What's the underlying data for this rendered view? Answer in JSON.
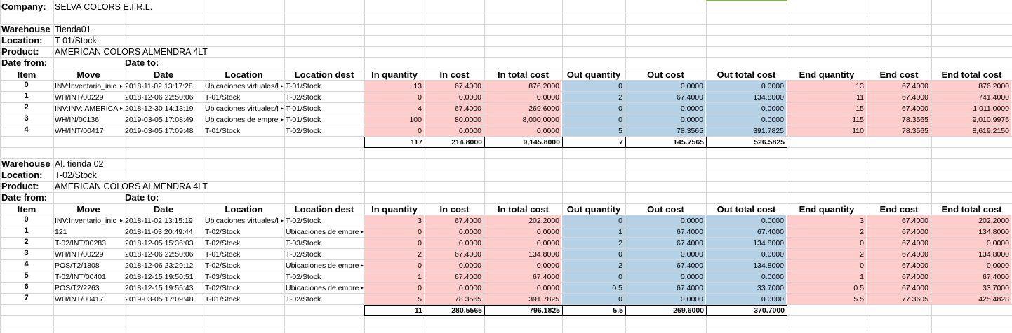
{
  "company": {
    "label": "Company:",
    "value": "SELVA COLORS E.I.R.L."
  },
  "labels": {
    "warehouse": "Warehouse",
    "location": "Location:",
    "product": "Product:",
    "date_from": "Date from:",
    "date_to": "Date to:"
  },
  "headers": [
    "Item",
    "Move",
    "Date",
    "Location",
    "Location dest",
    "In quantity",
    "In cost",
    "In total cost",
    "Out quantity",
    "Out cost",
    "Out total cost",
    "End quantity",
    "End cost",
    "End total cost"
  ],
  "sections": [
    {
      "warehouse": "Tienda01",
      "location": "T-01/Stock",
      "product": "AMERICAN COLORS ALMENDRA 4LT",
      "rows": [
        [
          "0",
          "INV:Inventario_inic",
          "2018-11-02 13:17:28",
          "Ubicaciones virtuales/I",
          "T-01/Stock",
          "13",
          "67.4000",
          "876.2000",
          "0",
          "0.0000",
          "0.0000",
          "13",
          "67.4000",
          "876.2000"
        ],
        [
          "1",
          "WH/INT/00229",
          "2018-12-06 22:50:06",
          "T-01/Stock",
          "T-02/Stock",
          "0",
          "0.0000",
          "0.0000",
          "2",
          "67.4000",
          "134.8000",
          "11",
          "67.4000",
          "741.4000"
        ],
        [
          "2",
          "INV:INV: AMERICA",
          "2018-12-30 14:13:19",
          "Ubicaciones virtuales/I",
          "T-01/Stock",
          "4",
          "67.4000",
          "269.6000",
          "0",
          "0.0000",
          "0.0000",
          "15",
          "67.4000",
          "1,011.0000"
        ],
        [
          "3",
          "WH/IN/00136",
          "2019-03-05 17:08:49",
          "Ubicaciones de empre",
          "T-01/Stock",
          "100",
          "80.0000",
          "8,000.0000",
          "0",
          "0.0000",
          "0.0000",
          "115",
          "78.3565",
          "9,010.9975"
        ],
        [
          "4",
          "WH/INT/00417",
          "2019-03-05 17:09:48",
          "T-01/Stock",
          "T-02/Stock",
          "0",
          "0.0000",
          "0.0000",
          "5",
          "78.3565",
          "391.7825",
          "110",
          "78.3565",
          "8,619.2150"
        ]
      ],
      "truncated": [
        [
          true,
          false,
          true,
          false
        ],
        [
          false,
          false,
          false,
          false
        ],
        [
          true,
          false,
          true,
          false
        ],
        [
          false,
          false,
          true,
          false
        ],
        [
          false,
          false,
          false,
          false
        ]
      ],
      "totals": [
        "117",
        "214.8000",
        "9,145.8000",
        "7",
        "145.7565",
        "526.5825"
      ]
    },
    {
      "warehouse": "Al. tienda 02",
      "location": "T-02/Stock",
      "product": "AMERICAN COLORS ALMENDRA 4LT",
      "rows": [
        [
          "0",
          "INV:Inventario_inic",
          "2018-11-02 13:15:19",
          "Ubicaciones virtuales/I",
          "T-02/Stock",
          "3",
          "67.4000",
          "202.2000",
          "0",
          "0.0000",
          "0.0000",
          "3",
          "67.4000",
          "202.2000"
        ],
        [
          "1",
          "121",
          "2018-11-03 20:49:44",
          "T-02/Stock",
          "Ubicaciones de empre",
          "0",
          "0.0000",
          "0.0000",
          "1",
          "67.4000",
          "67.4000",
          "2",
          "67.4000",
          "134.8000"
        ],
        [
          "2",
          "T-02/INT/00283",
          "2018-12-05 15:36:03",
          "T-02/Stock",
          "T-03/Stock",
          "0",
          "0.0000",
          "0.0000",
          "2",
          "67.4000",
          "134.8000",
          "0",
          "67.4000",
          "0.0000"
        ],
        [
          "3",
          "WH/INT/00229",
          "2018-12-06 22:50:06",
          "T-01/Stock",
          "T-02/Stock",
          "2",
          "67.4000",
          "134.8000",
          "0",
          "0.0000",
          "0.0000",
          "2",
          "67.4000",
          "134.8000"
        ],
        [
          "4",
          "POS/T2/1808",
          "2018-12-06 23:29:12",
          "T-02/Stock",
          "Ubicaciones de empre",
          "0",
          "0.0000",
          "0.0000",
          "2",
          "67.4000",
          "134.8000",
          "0",
          "67.4000",
          "0.0000"
        ],
        [
          "5",
          "T-02/INT/00401",
          "2018-12-15 19:50:51",
          "T-03/Stock",
          "T-02/Stock",
          "1",
          "67.4000",
          "67.4000",
          "0",
          "0.0000",
          "0.0000",
          "1",
          "67.4000",
          "67.4000"
        ],
        [
          "6",
          "POS/T2/2263",
          "2018-12-15 19:55:43",
          "T-02/Stock",
          "Ubicaciones de empre",
          "0",
          "0.0000",
          "0.0000",
          "0.5",
          "67.4000",
          "33.7000",
          "0.5",
          "67.4000",
          "33.7000"
        ],
        [
          "7",
          "WH/INT/00417",
          "2019-03-05 17:09:48",
          "T-01/Stock",
          "T-02/Stock",
          "5",
          "78.3565",
          "391.7825",
          "0",
          "0.0000",
          "0.0000",
          "5.5",
          "77.3605",
          "425.4828"
        ]
      ],
      "truncated": [
        [
          true,
          false,
          true,
          false
        ],
        [
          false,
          false,
          false,
          true
        ],
        [
          false,
          false,
          false,
          false
        ],
        [
          false,
          false,
          false,
          false
        ],
        [
          false,
          false,
          false,
          true
        ],
        [
          false,
          false,
          false,
          false
        ],
        [
          false,
          false,
          false,
          true
        ],
        [
          false,
          false,
          false,
          false
        ]
      ],
      "totals": [
        "11",
        "280.5565",
        "796.1825",
        "5.5",
        "269.6000",
        "370.7000"
      ]
    }
  ],
  "colors": {
    "in_fill": "#ffcccc",
    "out_fill": "#b4d1e6",
    "end_fill": "#ffcccc",
    "gridline": "#d4d4d4",
    "selected_column_marker": "#86b05a"
  }
}
